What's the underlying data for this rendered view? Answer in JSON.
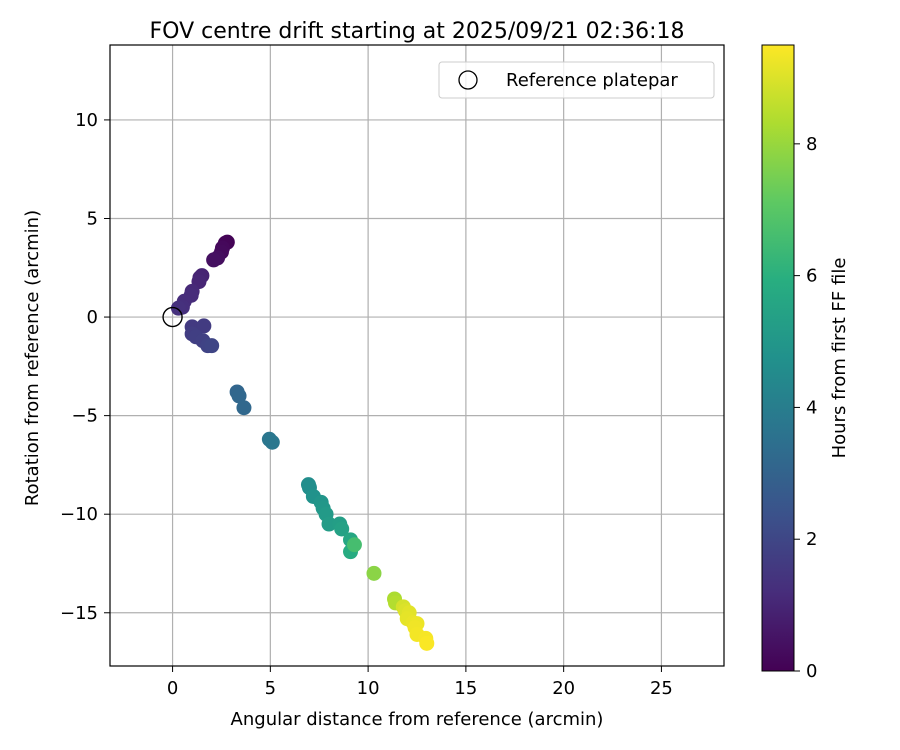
{
  "chart_data": {
    "type": "scatter",
    "title": "FOV centre drift starting at 2025/09/21 02:36:18",
    "xlabel": "Angular distance from reference (arcmin)",
    "ylabel": "Rotation from reference (arcmin)",
    "xlim": [
      -3.2,
      28.2
    ],
    "ylim": [
      -17.7,
      13.8
    ],
    "xticks": [
      0,
      5,
      10,
      15,
      20,
      25
    ],
    "yticks": [
      -15,
      -10,
      -5,
      0,
      5,
      10
    ],
    "grid": true,
    "legend": {
      "position": "top-right",
      "entries": [
        "Reference platepar"
      ]
    },
    "reference_point": {
      "x": 0,
      "y": 0,
      "label": "Reference platepar"
    },
    "colorbar": {
      "label": "Hours from first FF file",
      "range": [
        0,
        9.5
      ],
      "ticks": [
        0,
        2,
        4,
        6,
        8
      ],
      "colormap": "viridis"
    },
    "series": [
      {
        "name": "FOV centre drift",
        "points": [
          {
            "x": 2.8,
            "y": 3.8,
            "c": 0.05
          },
          {
            "x": 2.7,
            "y": 3.75,
            "c": 0.1
          },
          {
            "x": 2.55,
            "y": 3.5,
            "c": 0.2
          },
          {
            "x": 2.5,
            "y": 3.3,
            "c": 0.25
          },
          {
            "x": 2.3,
            "y": 3.0,
            "c": 0.35
          },
          {
            "x": 2.1,
            "y": 2.9,
            "c": 0.4
          },
          {
            "x": 1.5,
            "y": 2.1,
            "c": 0.9
          },
          {
            "x": 1.4,
            "y": 2.0,
            "c": 0.95
          },
          {
            "x": 1.35,
            "y": 1.8,
            "c": 1.0
          },
          {
            "x": 1.0,
            "y": 1.3,
            "c": 1.1
          },
          {
            "x": 0.95,
            "y": 1.1,
            "c": 1.15
          },
          {
            "x": 0.6,
            "y": 0.8,
            "c": 1.2
          },
          {
            "x": 0.5,
            "y": 0.5,
            "c": 1.25
          },
          {
            "x": 0.3,
            "y": 0.45,
            "c": 1.3
          },
          {
            "x": 1.0,
            "y": -0.5,
            "c": 1.6
          },
          {
            "x": 1.6,
            "y": -0.45,
            "c": 1.65
          },
          {
            "x": 1.0,
            "y": -0.85,
            "c": 1.7
          },
          {
            "x": 1.2,
            "y": -1.0,
            "c": 1.75
          },
          {
            "x": 1.55,
            "y": -1.2,
            "c": 1.8
          },
          {
            "x": 1.8,
            "y": -1.45,
            "c": 1.9
          },
          {
            "x": 2.0,
            "y": -1.45,
            "c": 1.95
          },
          {
            "x": 3.3,
            "y": -3.8,
            "c": 3.1
          },
          {
            "x": 3.4,
            "y": -4.0,
            "c": 3.15
          },
          {
            "x": 3.65,
            "y": -4.6,
            "c": 3.2
          },
          {
            "x": 4.95,
            "y": -6.2,
            "c": 3.7
          },
          {
            "x": 5.1,
            "y": -6.35,
            "c": 3.75
          },
          {
            "x": 6.95,
            "y": -8.5,
            "c": 4.6
          },
          {
            "x": 7.0,
            "y": -8.65,
            "c": 4.65
          },
          {
            "x": 7.2,
            "y": -9.1,
            "c": 4.8
          },
          {
            "x": 7.6,
            "y": -9.4,
            "c": 4.9
          },
          {
            "x": 7.7,
            "y": -9.7,
            "c": 5.0
          },
          {
            "x": 7.85,
            "y": -10.0,
            "c": 5.1
          },
          {
            "x": 8.0,
            "y": -10.5,
            "c": 5.2
          },
          {
            "x": 8.55,
            "y": -10.5,
            "c": 5.3
          },
          {
            "x": 8.65,
            "y": -10.75,
            "c": 5.4
          },
          {
            "x": 9.1,
            "y": -11.3,
            "c": 5.6
          },
          {
            "x": 9.1,
            "y": -11.9,
            "c": 5.8
          },
          {
            "x": 9.3,
            "y": -11.55,
            "c": 6.6
          },
          {
            "x": 10.3,
            "y": -13.0,
            "c": 7.8
          },
          {
            "x": 11.35,
            "y": -14.3,
            "c": 8.3
          },
          {
            "x": 11.4,
            "y": -14.5,
            "c": 8.4
          },
          {
            "x": 11.8,
            "y": -14.7,
            "c": 8.9
          },
          {
            "x": 11.9,
            "y": -14.9,
            "c": 9.0
          },
          {
            "x": 12.1,
            "y": -15.0,
            "c": 9.1
          },
          {
            "x": 12.0,
            "y": -15.3,
            "c": 9.15
          },
          {
            "x": 12.3,
            "y": -15.5,
            "c": 9.2
          },
          {
            "x": 12.5,
            "y": -15.55,
            "c": 9.25
          },
          {
            "x": 12.4,
            "y": -15.75,
            "c": 9.3
          },
          {
            "x": 12.5,
            "y": -16.1,
            "c": 9.35
          },
          {
            "x": 12.95,
            "y": -16.3,
            "c": 9.4
          },
          {
            "x": 13.0,
            "y": -16.55,
            "c": 9.45
          }
        ]
      }
    ]
  }
}
